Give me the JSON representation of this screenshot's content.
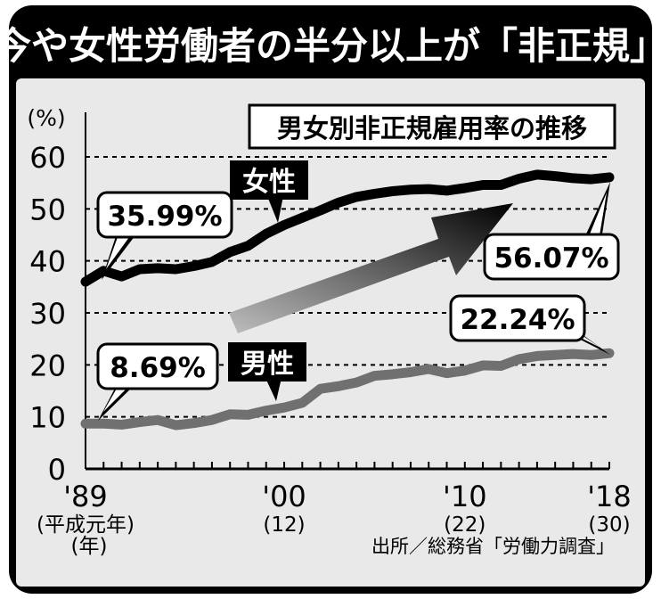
{
  "headline": "今や女性労働者の半分以上が「非正規」",
  "chart_data": {
    "type": "line",
    "title": "男女別非正規雇用率の推移",
    "ylabel": "(%)",
    "xlabel": "(年)",
    "ylim": [
      0,
      60
    ],
    "yticks": [
      0,
      10,
      20,
      30,
      40,
      50,
      60
    ],
    "xlim": [
      1989,
      2018
    ],
    "x_tick_labels": [
      {
        "x": 1989,
        "label": "'89",
        "sub": "(平成元年)"
      },
      {
        "x": 2000,
        "label": "'00",
        "sub": "(12)"
      },
      {
        "x": 2010,
        "label": "'10",
        "sub": "(22)"
      },
      {
        "x": 2018,
        "label": "'18",
        "sub": "(30)"
      }
    ],
    "grid": true,
    "x": [
      1989,
      1990,
      1991,
      1992,
      1993,
      1994,
      1995,
      1996,
      1997,
      1998,
      1999,
      2000,
      2001,
      2002,
      2003,
      2004,
      2005,
      2006,
      2007,
      2008,
      2009,
      2010,
      2011,
      2012,
      2013,
      2014,
      2015,
      2016,
      2017,
      2018
    ],
    "series": [
      {
        "name": "女性",
        "color": "#000000",
        "values": [
          35.99,
          38.1,
          37.0,
          38.4,
          38.6,
          38.4,
          39.0,
          39.8,
          41.7,
          42.9,
          45.2,
          46.9,
          48.3,
          49.7,
          51.2,
          52.3,
          52.9,
          53.4,
          53.7,
          53.8,
          53.5,
          54.0,
          54.6,
          54.6,
          55.8,
          56.6,
          56.3,
          55.9,
          55.7,
          56.07
        ],
        "start_label": "35.99%",
        "end_label": "56.07%"
      },
      {
        "name": "男性",
        "color": "#707070",
        "values": [
          8.69,
          8.7,
          8.5,
          9.0,
          9.4,
          8.4,
          8.8,
          9.4,
          10.5,
          10.4,
          11.2,
          11.8,
          12.7,
          15.4,
          15.9,
          16.6,
          17.9,
          18.2,
          18.6,
          19.2,
          18.4,
          18.9,
          19.9,
          19.8,
          21.1,
          21.7,
          21.9,
          22.1,
          21.9,
          22.24
        ],
        "start_label": "8.69%",
        "end_label": "22.24%"
      }
    ]
  },
  "source": "出所／総務省「労働力調査」",
  "colors": {
    "frame": "#000000",
    "panel": "#e9e9e9",
    "women_line": "#000000",
    "men_line": "#707070"
  }
}
